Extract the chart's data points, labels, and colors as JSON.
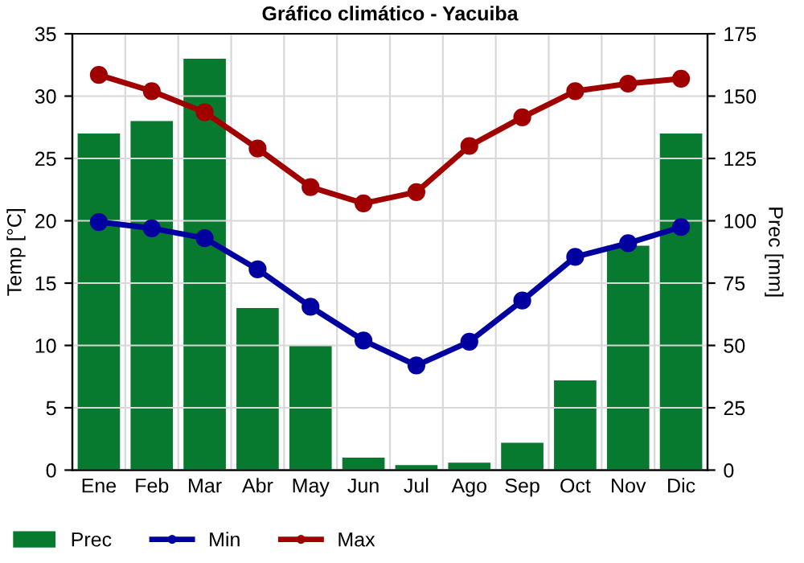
{
  "chart_data": {
    "type": "bar",
    "title": "Gráfico climático - Yacuiba",
    "ylabel": "Temp [°C]",
    "y2label": "Prec [mm]",
    "categories": [
      "Ene",
      "Feb",
      "Mar",
      "Abr",
      "May",
      "Jun",
      "Jul",
      "Ago",
      "Sep",
      "Oct",
      "Nov",
      "Dic"
    ],
    "series": [
      {
        "name": "Prec",
        "axis": "y2",
        "color": "#077a30",
        "values": [
          135,
          140,
          165,
          65,
          50,
          5,
          2,
          3,
          11,
          36,
          90,
          135
        ]
      },
      {
        "name": "Min",
        "type": "line",
        "axis": "y",
        "color": "#0000a0",
        "values": [
          19.9,
          19.4,
          18.6,
          16.1,
          13.1,
          10.4,
          8.4,
          10.3,
          13.6,
          17.1,
          18.2,
          19.5
        ]
      },
      {
        "name": "Max",
        "type": "line",
        "axis": "y",
        "color": "#a00000",
        "values": [
          31.7,
          30.4,
          28.7,
          25.8,
          22.7,
          21.4,
          22.3,
          26.0,
          28.3,
          30.4,
          31.0,
          31.4
        ]
      }
    ],
    "ylim": [
      0,
      35
    ],
    "yticks": [
      0,
      5,
      10,
      15,
      20,
      25,
      30,
      35
    ],
    "y2lim": [
      0,
      175
    ],
    "y2ticks": [
      0,
      25,
      50,
      75,
      100,
      125,
      150,
      175
    ],
    "grid": true,
    "legend": "bottom",
    "marker": "circle",
    "line_style": "solid"
  }
}
